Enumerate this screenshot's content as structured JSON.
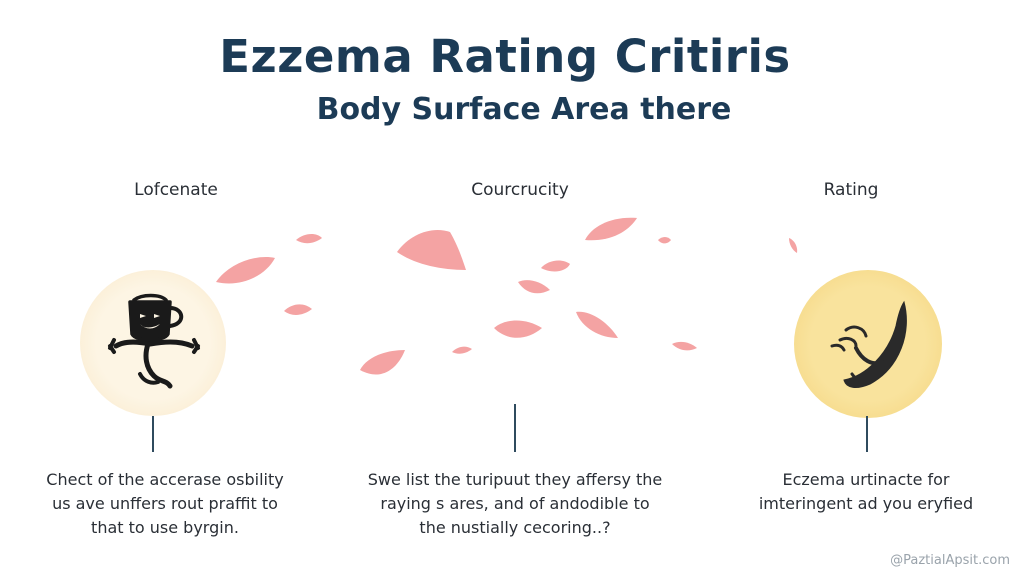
{
  "header": {
    "title": "Ezzema Rating Critiris",
    "subtitle": "Body Surface Area there"
  },
  "columns": [
    {
      "label": "Lofcenate",
      "icon": "cup-creature-icon",
      "circle_color": "#fbf1dc",
      "desc_lines": [
        "Chect of the accerase osbility",
        "us ave unffers rout praffit to",
        "that to use byrgin."
      ]
    },
    {
      "label": "Courcrucity",
      "icon": "petals-scatter",
      "circle_color": "",
      "desc_lines": [
        "Swe list the turipuut they affersy the",
        "raying s ares, and of andodible to",
        "the nustially cecoring..?"
      ]
    },
    {
      "label": "Rating",
      "icon": "crescent-bug-icon",
      "circle_color": "#f7dc8a",
      "desc_lines": [
        "Eczema urtinacte for",
        "imteringent ad you eryfied"
      ]
    }
  ],
  "petal_color": "#f4a3a3",
  "watermark": "@PaztialApsit.com"
}
